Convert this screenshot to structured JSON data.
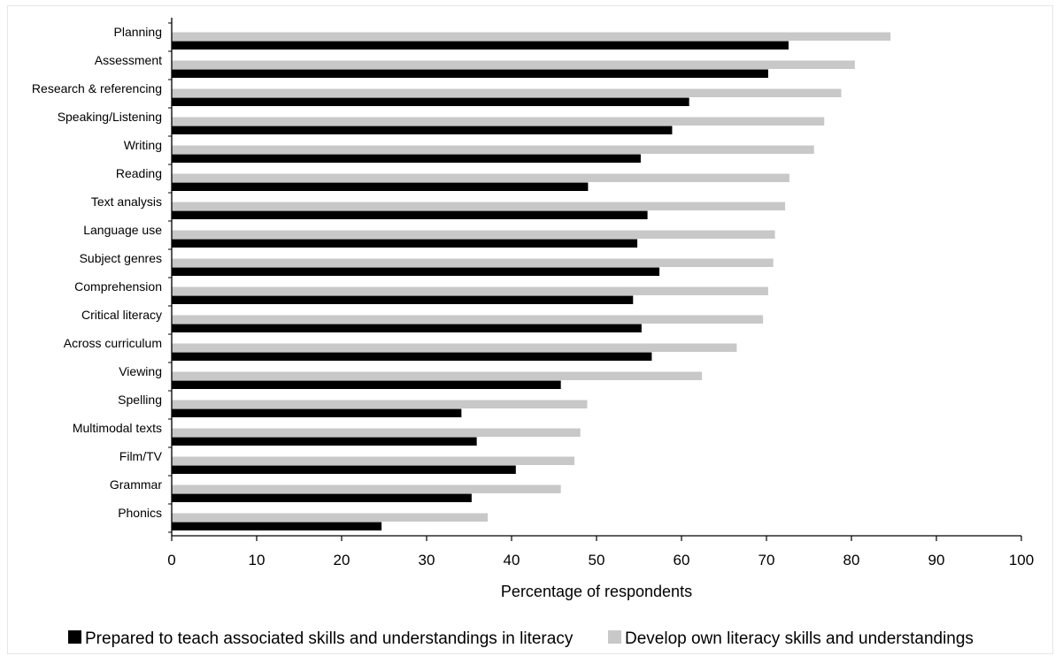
{
  "chart_data": {
    "type": "bar",
    "orientation": "horizontal",
    "categories": [
      "Planning",
      "Assessment",
      "Research & referencing",
      "Speaking/Listening",
      "Writing",
      "Reading",
      "Text analysis",
      "Language use",
      "Subject genres",
      "Comprehension",
      "Critical literacy",
      "Across curriculum",
      "Viewing",
      "Spelling",
      "Multimodal texts",
      "Film/TV",
      "Grammar",
      "Phonics"
    ],
    "series": [
      {
        "name": "Prepared to teach associated skills and understandings in literacy",
        "color": "#000000",
        "values": [
          72.6,
          70.2,
          60.9,
          58.9,
          55.2,
          49.0,
          56.0,
          54.8,
          57.4,
          54.3,
          55.3,
          56.5,
          45.8,
          34.1,
          35.9,
          40.5,
          35.3,
          24.7
        ]
      },
      {
        "name": "Develop own literacy skills and understandings",
        "color": "#c8c8c8",
        "values": [
          84.6,
          80.4,
          78.8,
          76.8,
          75.6,
          72.7,
          72.2,
          71.0,
          70.8,
          70.2,
          69.6,
          66.5,
          62.4,
          48.9,
          48.1,
          47.4,
          45.8,
          37.2
        ]
      }
    ],
    "xlabel": "Percentage of respondents",
    "ylabel": "",
    "xlim": [
      0,
      100
    ],
    "xticks": [
      0,
      10,
      20,
      30,
      40,
      50,
      60,
      70,
      80,
      90,
      100
    ],
    "grid": false,
    "legend_position": "bottom"
  }
}
